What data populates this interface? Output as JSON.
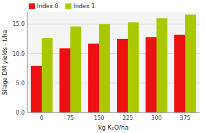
{
  "chart_data": {
    "type": "bar",
    "categories": [
      "0",
      "75",
      "150",
      "225",
      "300",
      "375"
    ],
    "series": [
      {
        "name": "Index 0",
        "color": "#ee1111",
        "values": [
          7.9,
          10.9,
          11.7,
          12.5,
          12.8,
          13.2
        ]
      },
      {
        "name": "Index 1",
        "color": "#aac800",
        "values": [
          12.6,
          14.6,
          15.0,
          15.3,
          16.0,
          16.6
        ]
      }
    ],
    "xlabel": "kg K₂O/ha",
    "ylabel": "Silage DM yields - t/ha",
    "ylim": [
      0,
      17
    ],
    "yticks": [
      {
        "value": 0.0,
        "label": "0.0"
      },
      {
        "value": 5.0,
        "label": "5.0"
      },
      {
        "value": 10.0,
        "label": "10.0"
      },
      {
        "value": 15.0,
        "label": "15.0"
      }
    ],
    "grid": true,
    "legend": "upper left"
  }
}
